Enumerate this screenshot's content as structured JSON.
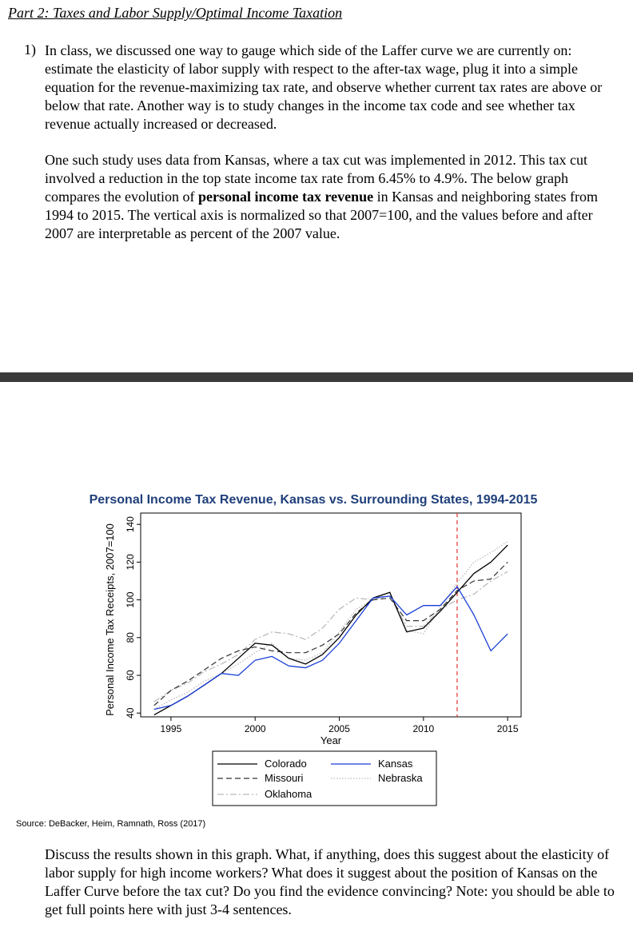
{
  "header": {
    "part_title": "Part 2: Taxes and Labor Supply/Optimal Income Taxation"
  },
  "question": {
    "number": "1)",
    "paragraph_1": "In class, we discussed one way to gauge which side of the Laffer curve we are currently on: estimate the elasticity of labor supply with respect to the after-tax wage, plug it into a simple equation for the revenue-maximizing tax rate, and observe whether current tax rates are above or below that rate. Another way is to study changes in the income tax code and see whether tax revenue actually increased or decreased.",
    "paragraph_2_before": "One such study uses data from Kansas, where a tax cut was implemented in 2012. This tax cut involved a reduction in the top state income tax rate from 6.45% to 4.9%. The below graph compares the evolution of ",
    "paragraph_2_bold": "personal income tax revenue",
    "paragraph_2_after": " in Kansas and neighboring states from 1994 to 2015. The vertical axis is normalized so that 2007=100, and the values before and after 2007 are interpretable as percent of the 2007 value.",
    "closing": "Discuss the results shown in this graph. What, if anything, does this suggest about the elasticity of labor supply for high income workers? What does it suggest about the position of Kansas on the Laffer Curve before the tax cut? Do you find the evidence convincing?  Note: you should be able to get full points here with just 3-4 sentences."
  },
  "source_note": "Source: DeBacker, Heim, Ramnath, Ross (2017)",
  "chart_data": {
    "type": "line",
    "title": "Personal Income Tax Revenue, Kansas vs. Surrounding States, 1994-2015",
    "xlabel": "Year",
    "ylabel": "Personal Income Tax Receipts, 2007=100",
    "xlim": [
      1993.2,
      2015.8
    ],
    "ylim": [
      38,
      146
    ],
    "xticks": [
      1995,
      2000,
      2005,
      2010,
      2015
    ],
    "yticks": [
      40,
      60,
      80,
      100,
      120,
      140
    ],
    "reference_line_year": 2012,
    "title_color": "#1f3f7a",
    "x": [
      1994,
      1995,
      1996,
      1997,
      1998,
      1999,
      2000,
      2001,
      2002,
      2003,
      2004,
      2005,
      2006,
      2007,
      2008,
      2009,
      2010,
      2011,
      2012,
      2013,
      2014,
      2015
    ],
    "series": [
      {
        "name": "Colorado",
        "color": "#000000",
        "dash": "",
        "width": 1.3,
        "values": [
          39,
          44,
          49,
          55,
          61,
          69,
          77,
          76,
          69,
          66,
          71,
          80,
          92,
          101,
          104,
          83,
          85,
          94,
          104,
          114,
          120,
          129
        ]
      },
      {
        "name": "Kansas",
        "color": "#1a3fd6",
        "dash": "",
        "width": 1.3,
        "values": [
          42,
          44,
          49,
          55,
          61,
          60,
          68,
          70,
          65,
          64,
          68,
          77,
          89,
          101,
          102,
          92,
          97,
          97,
          107,
          92,
          73,
          82
        ]
      },
      {
        "name": "Missouri",
        "color": "#333333",
        "dash": "7,4",
        "width": 1.2,
        "values": [
          44,
          52,
          57,
          63,
          69,
          73,
          75,
          73,
          72,
          72,
          76,
          82,
          93,
          100,
          101,
          89,
          89,
          95,
          105,
          110,
          111,
          120
        ]
      },
      {
        "name": "Nebraska",
        "color": "#bbbbbb",
        "dash": "1.5,2",
        "width": 1.3,
        "values": [
          42,
          47,
          51,
          57,
          61,
          66,
          72,
          77,
          69,
          68,
          72,
          83,
          95,
          100,
          104,
          84,
          82,
          96,
          109,
          120,
          125,
          131
        ]
      },
      {
        "name": "Oklahoma",
        "color": "#bbbbbb",
        "dash": "8,3,2,3",
        "width": 1.3,
        "values": [
          46,
          52,
          56,
          62,
          66,
          71,
          79,
          83,
          82,
          79,
          85,
          95,
          101,
          100,
          102,
          86,
          86,
          95,
          100,
          103,
          110,
          115
        ]
      }
    ],
    "legend": {
      "placement": "below",
      "layout": "two columns",
      "items": [
        "Colorado",
        "Kansas",
        "Missouri",
        "Nebraska",
        "Oklahoma"
      ]
    }
  }
}
